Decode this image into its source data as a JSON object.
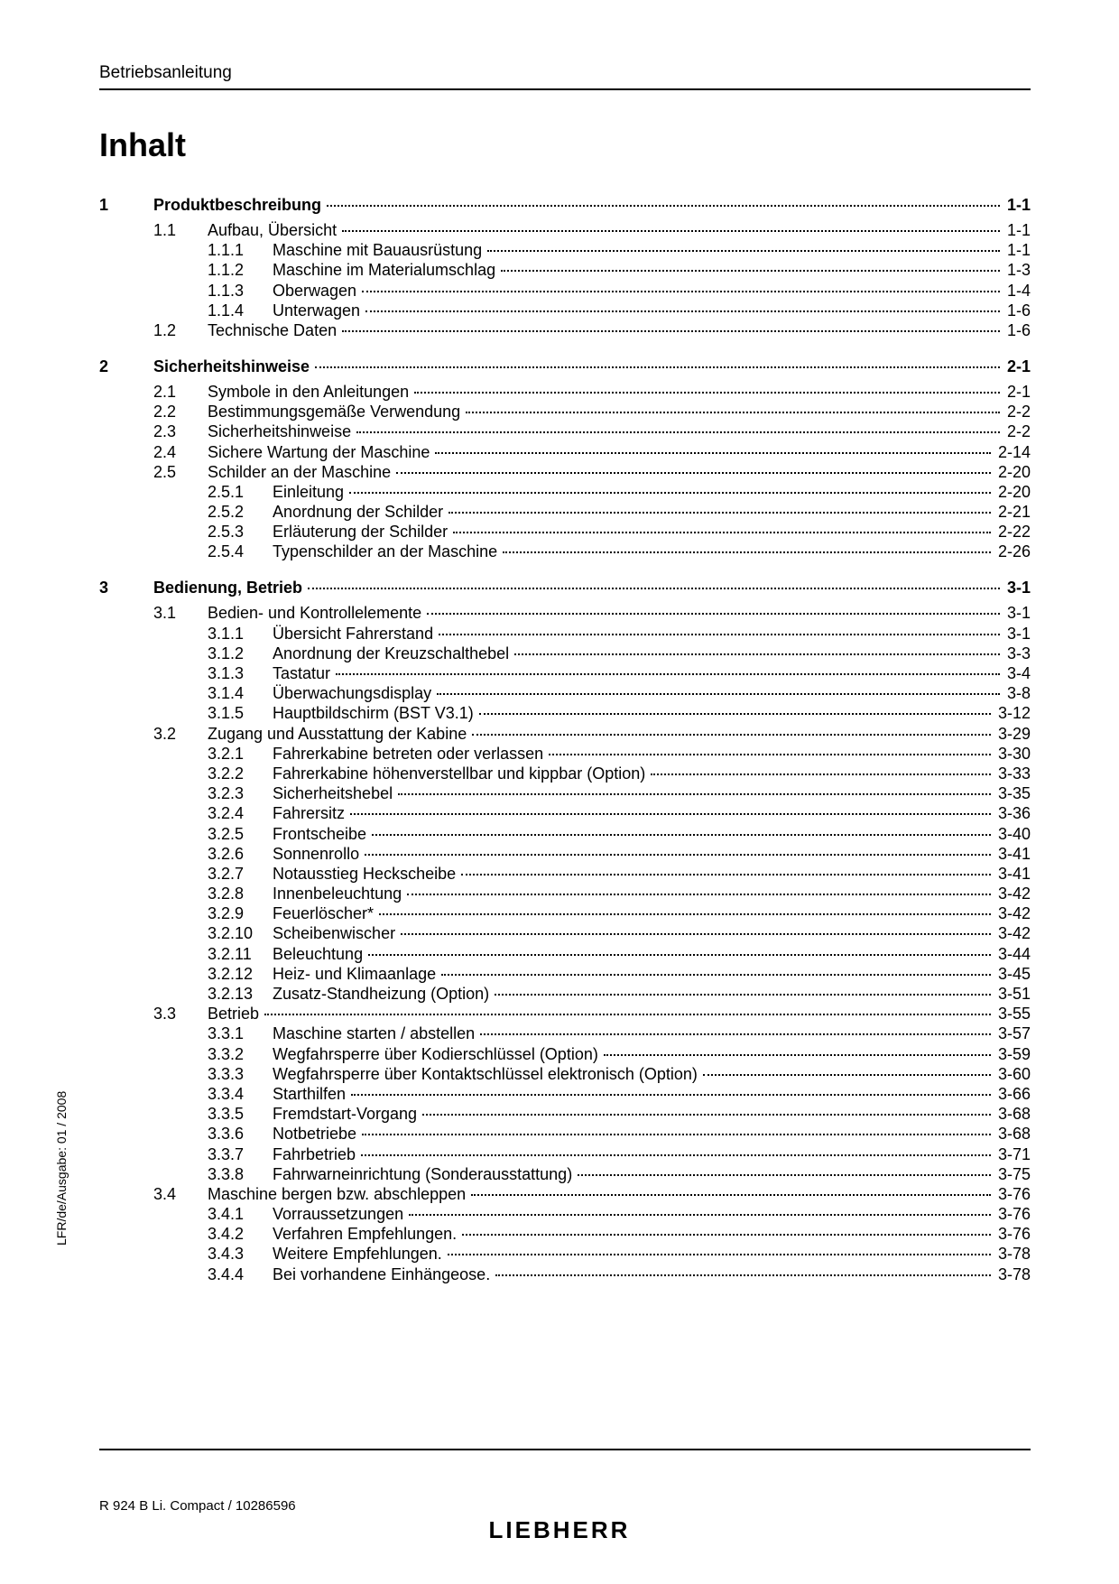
{
  "header": {
    "running": "Betriebsanleitung"
  },
  "title": "Inhalt",
  "side_text": "LFR/de/Ausgabe: 01 / 2008",
  "footer": {
    "left": "R 924 B Li. Compact / 10286596",
    "brand": "LIEBHERR"
  },
  "toc": [
    {
      "level": 1,
      "num": "1",
      "title": "Produktbeschreibung",
      "page": "1-1"
    },
    {
      "level": 2,
      "num": "1.1",
      "title": "Aufbau, Übersicht",
      "page": "1-1"
    },
    {
      "level": 3,
      "num": "1.1.1",
      "title": "Maschine mit Bauausrüstung",
      "page": "1-1"
    },
    {
      "level": 3,
      "num": "1.1.2",
      "title": "Maschine im Materialumschlag",
      "page": "1-3"
    },
    {
      "level": 3,
      "num": "1.1.3",
      "title": "Oberwagen",
      "page": "1-4"
    },
    {
      "level": 3,
      "num": "1.1.4",
      "title": "Unterwagen",
      "page": "1-6"
    },
    {
      "level": 2,
      "num": "1.2",
      "title": "Technische Daten",
      "page": "1-6",
      "break_after": true
    },
    {
      "level": 1,
      "num": "2",
      "title": "Sicherheitshinweise",
      "page": "2-1"
    },
    {
      "level": 2,
      "num": "2.1",
      "title": "Symbole in den Anleitungen",
      "page": "2-1"
    },
    {
      "level": 2,
      "num": "2.2",
      "title": "Bestimmungsgemäße Verwendung",
      "page": "2-2"
    },
    {
      "level": 2,
      "num": "2.3",
      "title": "Sicherheitshinweise",
      "page": "2-2"
    },
    {
      "level": 2,
      "num": "2.4",
      "title": "Sichere Wartung der Maschine",
      "page": "2-14"
    },
    {
      "level": 2,
      "num": "2.5",
      "title": "Schilder an der Maschine",
      "page": "2-20"
    },
    {
      "level": 3,
      "num": "2.5.1",
      "title": "Einleitung",
      "page": "2-20"
    },
    {
      "level": 3,
      "num": "2.5.2",
      "title": "Anordnung der Schilder",
      "page": "2-21"
    },
    {
      "level": 3,
      "num": "2.5.3",
      "title": "Erläuterung der Schilder",
      "page": "2-22"
    },
    {
      "level": 3,
      "num": "2.5.4",
      "title": "Typenschilder an der Maschine",
      "page": "2-26",
      "break_after": true
    },
    {
      "level": 1,
      "num": "3",
      "title": "Bedienung, Betrieb",
      "page": "3-1"
    },
    {
      "level": 2,
      "num": "3.1",
      "title": "Bedien- und Kontrollelemente",
      "page": "3-1"
    },
    {
      "level": 3,
      "num": "3.1.1",
      "title": "Übersicht Fahrerstand",
      "page": "3-1"
    },
    {
      "level": 3,
      "num": "3.1.2",
      "title": "Anordnung der Kreuzschalthebel",
      "page": "3-3"
    },
    {
      "level": 3,
      "num": "3.1.3",
      "title": "Tastatur",
      "page": "3-4"
    },
    {
      "level": 3,
      "num": "3.1.4",
      "title": "Überwachungsdisplay",
      "page": "3-8"
    },
    {
      "level": 3,
      "num": "3.1.5",
      "title": "Hauptbildschirm (BST V3.1)",
      "page": "3-12"
    },
    {
      "level": 2,
      "num": "3.2",
      "title": "Zugang und Ausstattung der Kabine",
      "page": "3-29"
    },
    {
      "level": 3,
      "num": "3.2.1",
      "title": "Fahrerkabine betreten oder verlassen",
      "page": "3-30"
    },
    {
      "level": 3,
      "num": "3.2.2",
      "title": "Fahrerkabine höhenverstellbar und kippbar (Option)",
      "page": "3-33"
    },
    {
      "level": 3,
      "num": "3.2.3",
      "title": "Sicherheitshebel",
      "page": "3-35"
    },
    {
      "level": 3,
      "num": "3.2.4",
      "title": "Fahrersitz",
      "page": "3-36"
    },
    {
      "level": 3,
      "num": "3.2.5",
      "title": "Frontscheibe",
      "page": "3-40"
    },
    {
      "level": 3,
      "num": "3.2.6",
      "title": "Sonnenrollo",
      "page": "3-41"
    },
    {
      "level": 3,
      "num": "3.2.7",
      "title": "Notausstieg Heckscheibe",
      "page": "3-41"
    },
    {
      "level": 3,
      "num": "3.2.8",
      "title": "Innenbeleuchtung",
      "page": "3-42"
    },
    {
      "level": 3,
      "num": "3.2.9",
      "title": "Feuerlöscher*",
      "page": "3-42"
    },
    {
      "level": 3,
      "num": "3.2.10",
      "title": "Scheibenwischer",
      "page": "3-42"
    },
    {
      "level": 3,
      "num": "3.2.11",
      "title": "Beleuchtung",
      "page": "3-44"
    },
    {
      "level": 3,
      "num": "3.2.12",
      "title": "Heiz- und Klimaanlage",
      "page": "3-45"
    },
    {
      "level": 3,
      "num": "3.2.13",
      "title": "Zusatz-Standheizung (Option)",
      "page": "3-51"
    },
    {
      "level": 2,
      "num": "3.3",
      "title": "Betrieb",
      "page": "3-55"
    },
    {
      "level": 3,
      "num": "3.3.1",
      "title": "Maschine starten / abstellen",
      "page": "3-57"
    },
    {
      "level": 3,
      "num": "3.3.2",
      "title": "Wegfahrsperre über Kodierschlüssel (Option)",
      "page": "3-59"
    },
    {
      "level": 3,
      "num": "3.3.3",
      "title": "Wegfahrsperre über Kontaktschlüssel elektronisch (Option)",
      "page": "3-60"
    },
    {
      "level": 3,
      "num": "3.3.4",
      "title": "Starthilfen",
      "page": "3-66"
    },
    {
      "level": 3,
      "num": "3.3.5",
      "title": "Fremdstart-Vorgang",
      "page": "3-68"
    },
    {
      "level": 3,
      "num": "3.3.6",
      "title": "Notbetriebe",
      "page": "3-68"
    },
    {
      "level": 3,
      "num": "3.3.7",
      "title": "Fahrbetrieb",
      "page": "3-71"
    },
    {
      "level": 3,
      "num": "3.3.8",
      "title": "Fahrwarneinrichtung (Sonderausstattung)",
      "page": "3-75"
    },
    {
      "level": 2,
      "num": "3.4",
      "title": "Maschine bergen bzw. abschleppen",
      "page": "3-76"
    },
    {
      "level": 3,
      "num": "3.4.1",
      "title": "Vorraussetzungen",
      "page": "3-76"
    },
    {
      "level": 3,
      "num": "3.4.2",
      "title": "Verfahren Empfehlungen.",
      "page": "3-76"
    },
    {
      "level": 3,
      "num": "3.4.3",
      "title": "Weitere Empfehlungen.",
      "page": "3-78"
    },
    {
      "level": 3,
      "num": "3.4.4",
      "title": "Bei vorhandene Einhängeose.",
      "page": "3-78"
    }
  ]
}
